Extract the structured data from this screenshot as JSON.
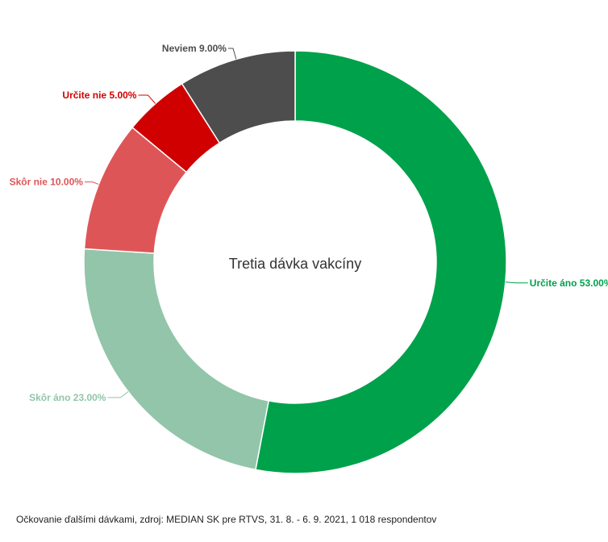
{
  "chart_data": {
    "type": "pie",
    "donut": true,
    "title": "Tretia dávka vakcíny",
    "caption": "Očkovanie ďalšími dávkami, zdroj: MEDIAN SK pre RTVS, 31. 8. - 6. 9. 2021, 1 018 respondentov",
    "slices": [
      {
        "label": "Určite áno",
        "value": 53.0,
        "display": "Určite áno 53.00%",
        "color": "#00a14b"
      },
      {
        "label": "Skôr áno",
        "value": 23.0,
        "display": "Skôr áno 23.00%",
        "color": "#92c5a9"
      },
      {
        "label": "Skôr nie",
        "value": 10.0,
        "display": "Skôr nie 10.00%",
        "color": "#de5558"
      },
      {
        "label": "Určite nie",
        "value": 5.0,
        "display": "Určite nie 5.00%",
        "color": "#d10000"
      },
      {
        "label": "Neviem",
        "value": 9.0,
        "display": "Neviem 9.00%",
        "color": "#4d4d4d"
      }
    ]
  }
}
